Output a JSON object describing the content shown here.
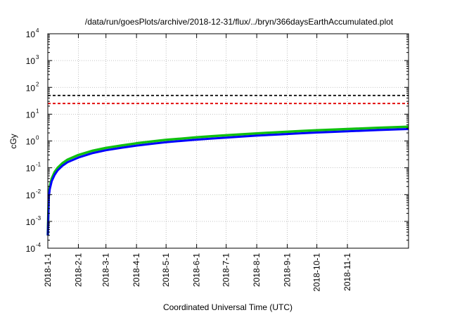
{
  "chart_data": {
    "type": "line",
    "title": "/data/run/goesPlots/archive/2018-12-31/flux/../bryn/366daysEarthAccumulated.plot",
    "xlabel": "Coordinated Universal Time (UTC)",
    "ylabel": "cGy",
    "y_scale": "log",
    "ylim_exp": [
      -4,
      4
    ],
    "y_ticks": [
      {
        "base": "10",
        "exp": "-4"
      },
      {
        "base": "10",
        "exp": "-3"
      },
      {
        "base": "10",
        "exp": "-2"
      },
      {
        "base": "10",
        "exp": "-1"
      },
      {
        "base": "10",
        "exp": "0"
      },
      {
        "base": "10",
        "exp": "1"
      },
      {
        "base": "10",
        "exp": "2"
      },
      {
        "base": "10",
        "exp": "3"
      },
      {
        "base": "10",
        "exp": "4"
      }
    ],
    "x_range_days": [
      0,
      366
    ],
    "x_ticks": [
      {
        "label": "2018-1-1",
        "day": 0
      },
      {
        "label": "2018-2-1",
        "day": 31
      },
      {
        "label": "2018-3-1",
        "day": 59
      },
      {
        "label": "2018-4-1",
        "day": 90
      },
      {
        "label": "2018-5-1",
        "day": 120
      },
      {
        "label": "2018-6-1",
        "day": 151
      },
      {
        "label": "2018-7-1",
        "day": 181
      },
      {
        "label": "2018-8-1",
        "day": 212
      },
      {
        "label": "2018-9-1",
        "day": 243
      },
      {
        "label": "2018-10-1",
        "day": 273
      },
      {
        "label": "2018-11-1",
        "day": 304
      }
    ],
    "grid": true,
    "hlines": [
      {
        "value": 50,
        "color": "#000000",
        "style": "dashed"
      },
      {
        "value": 25,
        "color": "#e00000",
        "style": "dashed"
      }
    ],
    "series": [
      {
        "color": "#10c010",
        "points": [
          [
            0,
            0.0003
          ],
          [
            1,
            0.01
          ],
          [
            2,
            0.02
          ],
          [
            4,
            0.04
          ],
          [
            7,
            0.07
          ],
          [
            10,
            0.1
          ],
          [
            15,
            0.15
          ],
          [
            20,
            0.2
          ],
          [
            31,
            0.3
          ],
          [
            45,
            0.43
          ],
          [
            59,
            0.55
          ],
          [
            75,
            0.68
          ],
          [
            90,
            0.82
          ],
          [
            105,
            0.95
          ],
          [
            120,
            1.1
          ],
          [
            135,
            1.22
          ],
          [
            151,
            1.37
          ],
          [
            166,
            1.5
          ],
          [
            181,
            1.63
          ],
          [
            197,
            1.78
          ],
          [
            212,
            1.92
          ],
          [
            228,
            2.07
          ],
          [
            243,
            2.21
          ],
          [
            258,
            2.36
          ],
          [
            273,
            2.5
          ],
          [
            289,
            2.65
          ],
          [
            304,
            2.8
          ],
          [
            320,
            2.95
          ],
          [
            335,
            3.1
          ],
          [
            350,
            3.25
          ],
          [
            366,
            3.4
          ]
        ]
      },
      {
        "color": "#0000ff",
        "points": [
          [
            0,
            0.0003
          ],
          [
            1,
            0.008
          ],
          [
            2,
            0.016
          ],
          [
            4,
            0.032
          ],
          [
            7,
            0.055
          ],
          [
            10,
            0.08
          ],
          [
            15,
            0.12
          ],
          [
            20,
            0.16
          ],
          [
            31,
            0.24
          ],
          [
            45,
            0.35
          ],
          [
            59,
            0.45
          ],
          [
            75,
            0.56
          ],
          [
            90,
            0.67
          ],
          [
            105,
            0.78
          ],
          [
            120,
            0.9
          ],
          [
            135,
            1.0
          ],
          [
            151,
            1.12
          ],
          [
            166,
            1.23
          ],
          [
            181,
            1.34
          ],
          [
            197,
            1.46
          ],
          [
            212,
            1.58
          ],
          [
            228,
            1.7
          ],
          [
            243,
            1.82
          ],
          [
            258,
            1.94
          ],
          [
            273,
            2.06
          ],
          [
            289,
            2.18
          ],
          [
            304,
            2.3
          ],
          [
            320,
            2.42
          ],
          [
            335,
            2.55
          ],
          [
            350,
            2.68
          ],
          [
            366,
            2.8
          ]
        ]
      }
    ]
  }
}
